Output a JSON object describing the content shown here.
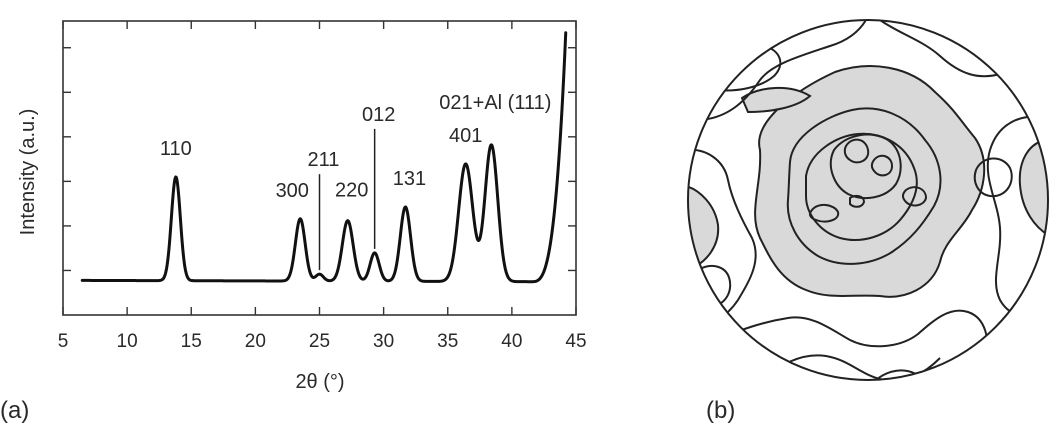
{
  "panels": {
    "a_label": "(a)",
    "b_label": "(b)"
  },
  "chart_data": {
    "type": "line",
    "title": "",
    "xlabel": "2θ (°)",
    "ylabel": "Intensity (a.u.)",
    "xlim": [
      5,
      45
    ],
    "ylim": [
      0,
      8.5
    ],
    "xticks": [
      5,
      10,
      15,
      20,
      25,
      30,
      35,
      40,
      45
    ],
    "ytick_count": 6,
    "grid": false,
    "legend": "none",
    "baseline": 1.0,
    "x_start": 6.5,
    "x_end": 44.2,
    "peaks": [
      {
        "label": "110",
        "x": 13.8,
        "height": 3.0,
        "width": 0.35
      },
      {
        "label": "300",
        "x": 23.5,
        "height": 1.8,
        "width": 0.38
      },
      {
        "label": "211",
        "x": 25.0,
        "height": 0.2,
        "width": 0.3
      },
      {
        "label": "220",
        "x": 27.2,
        "height": 1.75,
        "width": 0.42
      },
      {
        "label": "012",
        "x": 29.3,
        "height": 0.82,
        "width": 0.35
      },
      {
        "label": "131",
        "x": 31.7,
        "height": 2.15,
        "width": 0.4
      },
      {
        "label": "401",
        "x": 36.4,
        "height": 3.4,
        "width": 0.55
      },
      {
        "label": "021+Al (111)",
        "x": 38.4,
        "height": 3.95,
        "width": 0.5
      }
    ],
    "background_rise": {
      "start": 41.5,
      "end_value": 8.2
    }
  }
}
